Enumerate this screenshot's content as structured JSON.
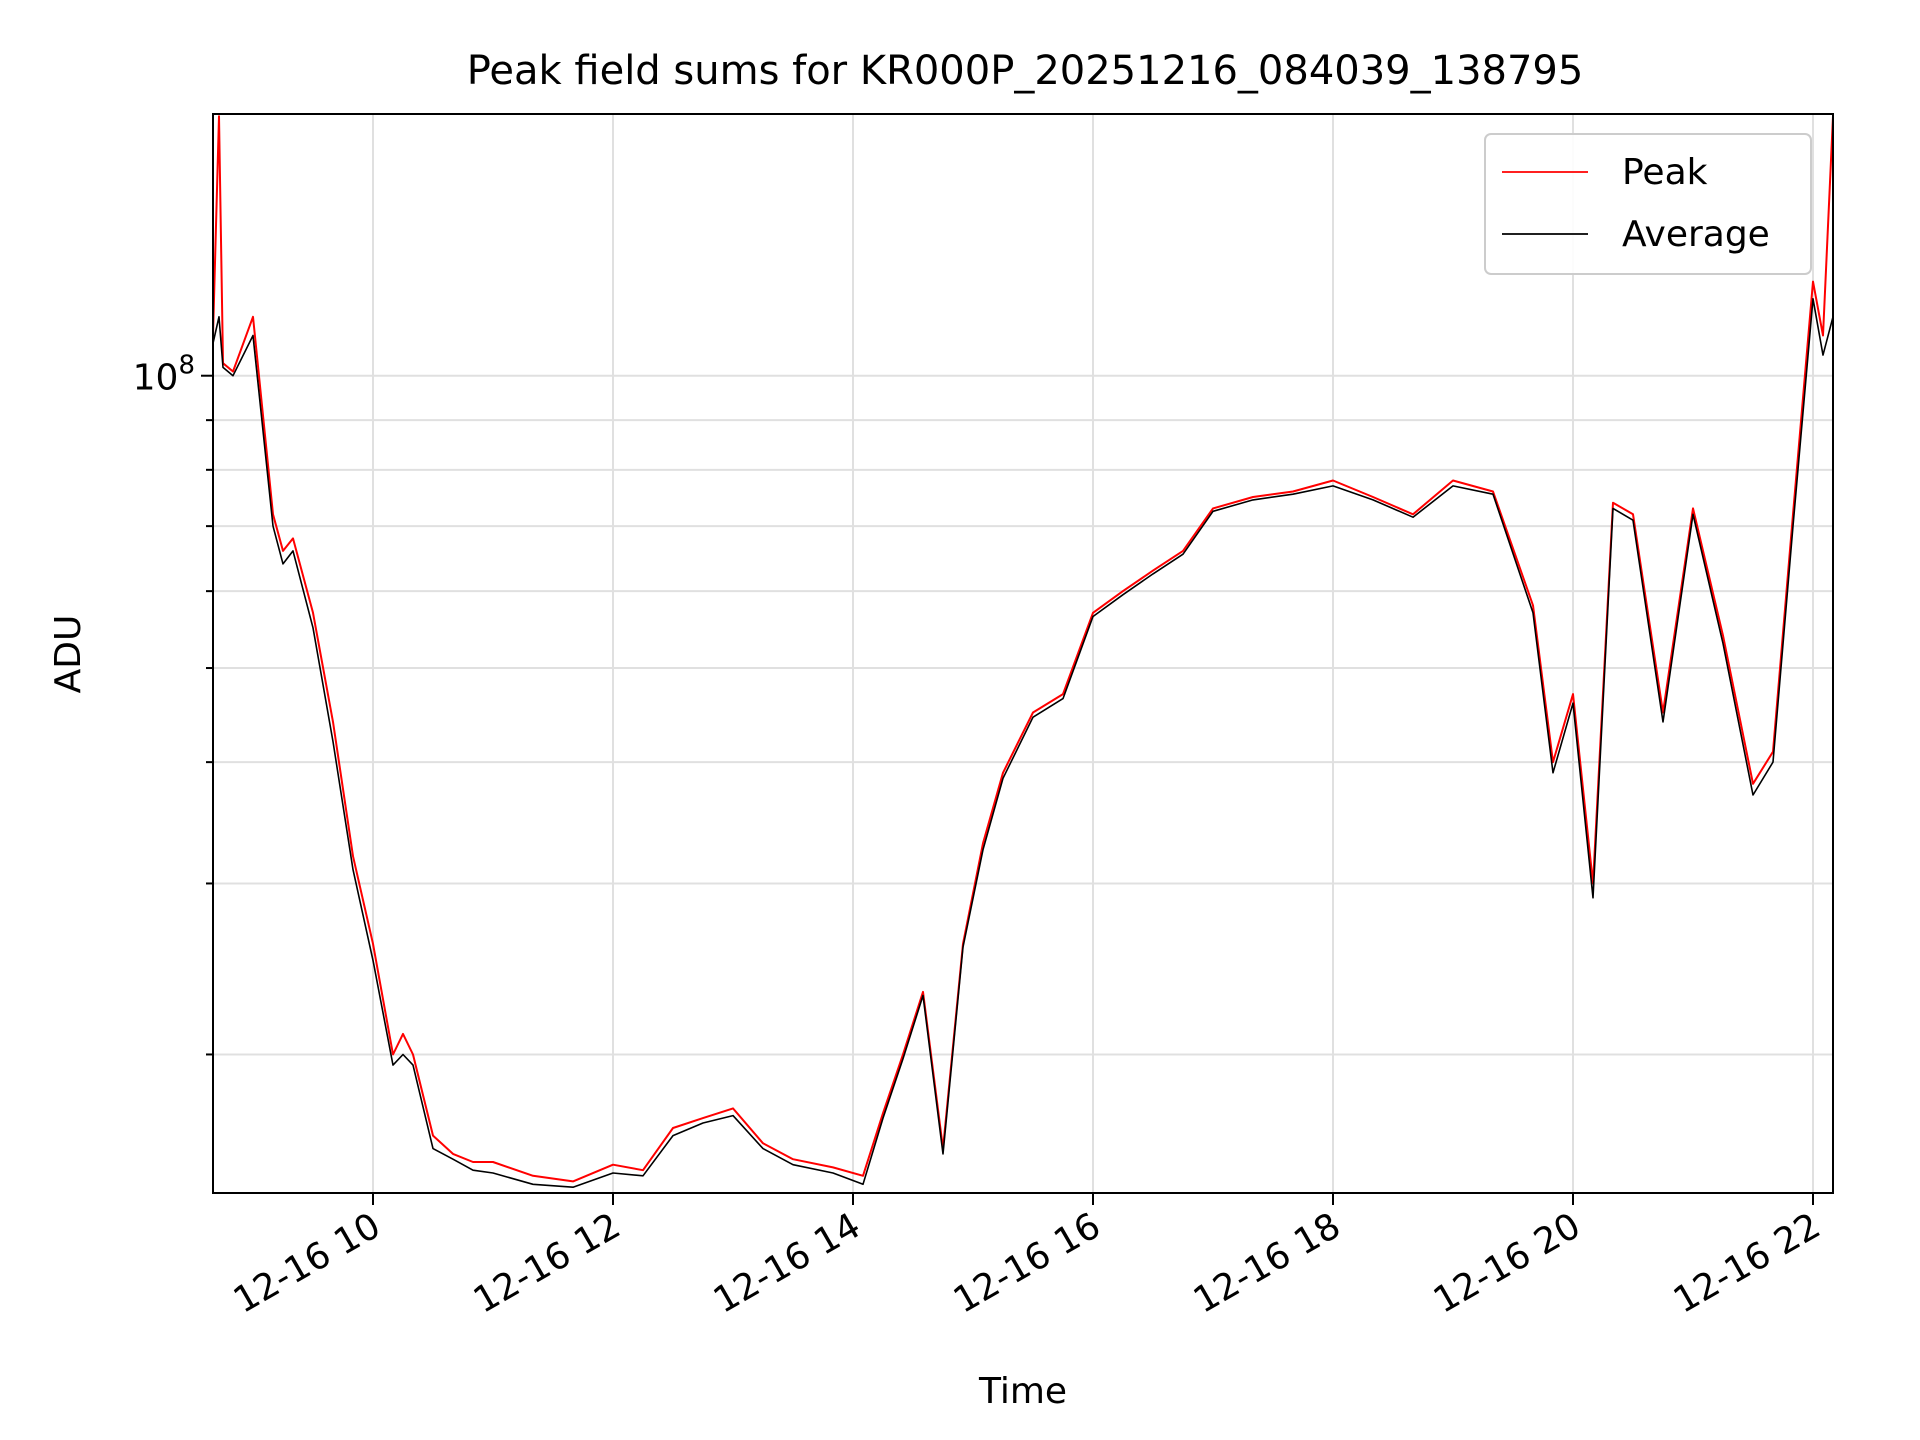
{
  "chart_data": {
    "type": "line",
    "title": "Peak field sums for KR000P_20251216_084039_138795",
    "xlabel": "Time",
    "ylabel": "ADU",
    "yscale": "log",
    "grid": true,
    "legend_position": "top-right",
    "xlim": [
      "2025-12-16 08:40",
      "2025-12-16 22:10"
    ],
    "ylim": [
      14400000,
      186000000
    ],
    "x_ticks": [
      "12-16 10",
      "12-16 12",
      "12-16 14",
      "12-16 16",
      "12-16 18",
      "12-16 20",
      "12-16 22"
    ],
    "y_ticks": [
      "10^8"
    ],
    "x_ticks_iso": [
      "2025-12-16 10:00",
      "2025-12-16 12:00",
      "2025-12-16 14:00",
      "2025-12-16 16:00",
      "2025-12-16 18:00",
      "2025-12-16 20:00",
      "2025-12-16 22:00"
    ],
    "y_tick_values": [
      100000000
    ],
    "series": [
      {
        "name": "Peak",
        "color": "#ff0000",
        "x": [
          "2025-12-16 08:40",
          "2025-12-16 08:43",
          "2025-12-16 08:45",
          "2025-12-16 08:50",
          "2025-12-16 09:00",
          "2025-12-16 09:10",
          "2025-12-16 09:15",
          "2025-12-16 09:20",
          "2025-12-16 09:30",
          "2025-12-16 09:40",
          "2025-12-16 09:50",
          "2025-12-16 10:00",
          "2025-12-16 10:10",
          "2025-12-16 10:15",
          "2025-12-16 10:20",
          "2025-12-16 10:30",
          "2025-12-16 10:40",
          "2025-12-16 10:50",
          "2025-12-16 11:00",
          "2025-12-16 11:20",
          "2025-12-16 11:40",
          "2025-12-16 12:00",
          "2025-12-16 12:15",
          "2025-12-16 12:30",
          "2025-12-16 12:45",
          "2025-12-16 13:00",
          "2025-12-16 13:15",
          "2025-12-16 13:30",
          "2025-12-16 13:50",
          "2025-12-16 14:05",
          "2025-12-16 14:15",
          "2025-12-16 14:25",
          "2025-12-16 14:35",
          "2025-12-16 14:45",
          "2025-12-16 14:55",
          "2025-12-16 15:05",
          "2025-12-16 15:15",
          "2025-12-16 15:30",
          "2025-12-16 15:45",
          "2025-12-16 16:00",
          "2025-12-16 16:15",
          "2025-12-16 16:30",
          "2025-12-16 16:45",
          "2025-12-16 17:00",
          "2025-12-16 17:20",
          "2025-12-16 17:40",
          "2025-12-16 18:00",
          "2025-12-16 18:20",
          "2025-12-16 18:40",
          "2025-12-16 19:00",
          "2025-12-16 19:20",
          "2025-12-16 19:40",
          "2025-12-16 19:50",
          "2025-12-16 20:00",
          "2025-12-16 20:10",
          "2025-12-16 20:20",
          "2025-12-16 20:30",
          "2025-12-16 20:45",
          "2025-12-16 21:00",
          "2025-12-16 21:15",
          "2025-12-16 21:30",
          "2025-12-16 21:40",
          "2025-12-16 21:50",
          "2025-12-16 22:00",
          "2025-12-16 22:05",
          "2025-12-16 22:10"
        ],
        "values": [
          110000000,
          185000000,
          103000000,
          101000000,
          115000000,
          72000000,
          66000000,
          68000000,
          57000000,
          44000000,
          32000000,
          26000000,
          20000000,
          21000000,
          20000000,
          16500000,
          15800000,
          15500000,
          15500000,
          15000000,
          14800000,
          15400000,
          15200000,
          16800000,
          17200000,
          17600000,
          16200000,
          15600000,
          15300000,
          15000000,
          17400000,
          20000000,
          23200000,
          16000000,
          26000000,
          33000000,
          39000000,
          45000000,
          47000000,
          57000000,
          60000000,
          63000000,
          66000000,
          73000000,
          75000000,
          76000000,
          78000000,
          75000000,
          72000000,
          78000000,
          76000000,
          58000000,
          40000000,
          47000000,
          30000000,
          74000000,
          72000000,
          45000000,
          73000000,
          54000000,
          38000000,
          41000000,
          72000000,
          125000000,
          110000000,
          185000000
        ]
      },
      {
        "name": "Average",
        "color": "#000000",
        "x": [
          "2025-12-16 08:40",
          "2025-12-16 08:43",
          "2025-12-16 08:45",
          "2025-12-16 08:50",
          "2025-12-16 09:00",
          "2025-12-16 09:10",
          "2025-12-16 09:15",
          "2025-12-16 09:20",
          "2025-12-16 09:30",
          "2025-12-16 09:40",
          "2025-12-16 09:50",
          "2025-12-16 10:00",
          "2025-12-16 10:10",
          "2025-12-16 10:15",
          "2025-12-16 10:20",
          "2025-12-16 10:30",
          "2025-12-16 10:40",
          "2025-12-16 10:50",
          "2025-12-16 11:00",
          "2025-12-16 11:20",
          "2025-12-16 11:40",
          "2025-12-16 12:00",
          "2025-12-16 12:15",
          "2025-12-16 12:30",
          "2025-12-16 12:45",
          "2025-12-16 13:00",
          "2025-12-16 13:15",
          "2025-12-16 13:30",
          "2025-12-16 13:50",
          "2025-12-16 14:05",
          "2025-12-16 14:15",
          "2025-12-16 14:25",
          "2025-12-16 14:35",
          "2025-12-16 14:45",
          "2025-12-16 14:55",
          "2025-12-16 15:05",
          "2025-12-16 15:15",
          "2025-12-16 15:30",
          "2025-12-16 15:45",
          "2025-12-16 16:00",
          "2025-12-16 16:15",
          "2025-12-16 16:30",
          "2025-12-16 16:45",
          "2025-12-16 17:00",
          "2025-12-16 17:20",
          "2025-12-16 17:40",
          "2025-12-16 18:00",
          "2025-12-16 18:20",
          "2025-12-16 18:40",
          "2025-12-16 19:00",
          "2025-12-16 19:20",
          "2025-12-16 19:40",
          "2025-12-16 19:50",
          "2025-12-16 20:00",
          "2025-12-16 20:10",
          "2025-12-16 20:20",
          "2025-12-16 20:30",
          "2025-12-16 20:45",
          "2025-12-16 21:00",
          "2025-12-16 21:15",
          "2025-12-16 21:30",
          "2025-12-16 21:40",
          "2025-12-16 21:50",
          "2025-12-16 22:00",
          "2025-12-16 22:05",
          "2025-12-16 22:10"
        ],
        "values": [
          108000000,
          115000000,
          102000000,
          100000000,
          110000000,
          70000000,
          64000000,
          66000000,
          55000000,
          42000000,
          31000000,
          25000000,
          19500000,
          20000000,
          19500000,
          16000000,
          15600000,
          15200000,
          15100000,
          14700000,
          14600000,
          15100000,
          15000000,
          16500000,
          17000000,
          17300000,
          16000000,
          15400000,
          15100000,
          14700000,
          17200000,
          19800000,
          23000000,
          15800000,
          25800000,
          32500000,
          38500000,
          44500000,
          46500000,
          56500000,
          59500000,
          62500000,
          65500000,
          72500000,
          74500000,
          75500000,
          77000000,
          74500000,
          71500000,
          77000000,
          75500000,
          57000000,
          39000000,
          46000000,
          29000000,
          73000000,
          71000000,
          44000000,
          72000000,
          53000000,
          37000000,
          40000000,
          70000000,
          120000000,
          105000000,
          115000000
        ]
      }
    ]
  }
}
